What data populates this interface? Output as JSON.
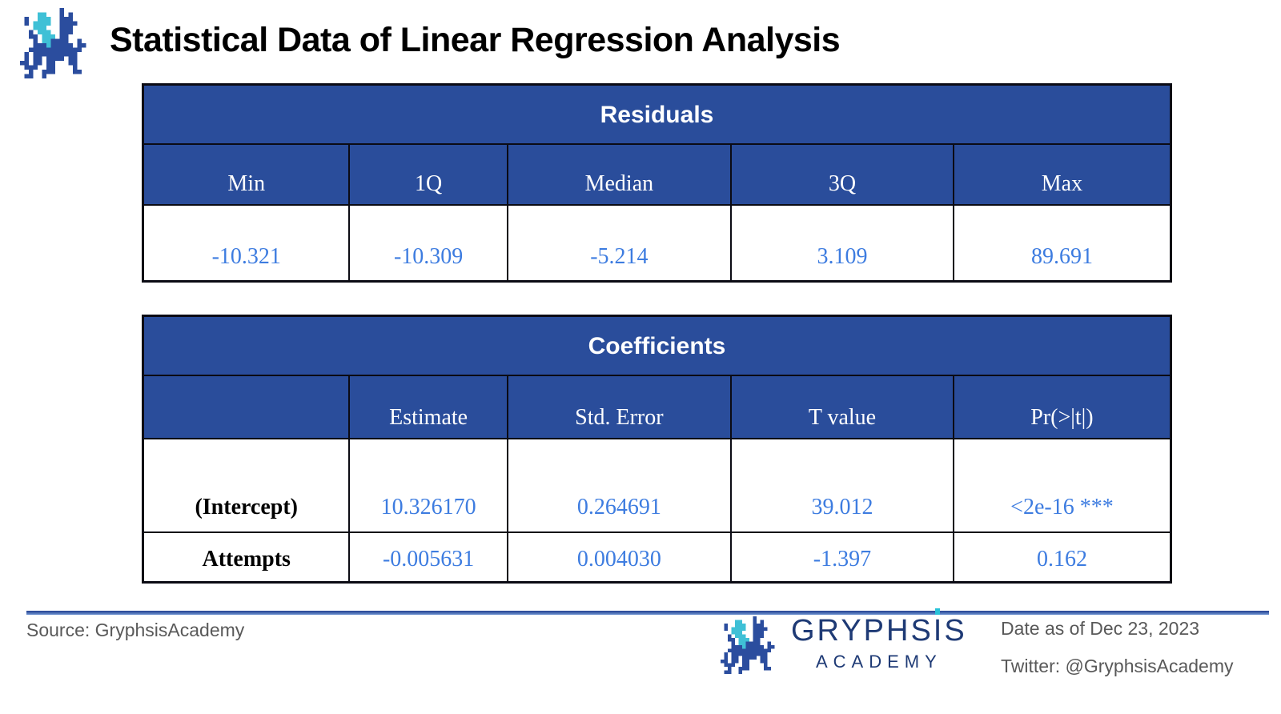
{
  "header": {
    "title": "Statistical Data of Linear Regression Analysis"
  },
  "residuals_table": {
    "caption": "Residuals",
    "columns": [
      "Min",
      "1Q",
      "Median",
      "3Q",
      "Max"
    ],
    "values": [
      "-10.321",
      "-10.309",
      "-5.214",
      "3.109",
      "89.691"
    ]
  },
  "coefficients_table": {
    "caption": "Coefficients",
    "columns": [
      "",
      "Estimate",
      "Std. Error",
      "T value",
      "Pr(>|t|)"
    ],
    "rows": [
      {
        "label": "(Intercept)",
        "values": [
          "10.326170",
          "0.264691",
          "39.012",
          "<2e-16 ***"
        ]
      },
      {
        "label": "Attempts",
        "values": [
          "-0.005631",
          "0.004030",
          "-1.397",
          "0.162"
        ]
      }
    ]
  },
  "footer": {
    "source": "Source: GryphsisAcademy",
    "brand": {
      "part1": "GRYPHS",
      "dotted_letter": "I",
      "part2": "S",
      "sub": "ACADEMY"
    },
    "date": "Date as of Dec 23, 2023",
    "twitter": "Twitter: @GryphsisAcademy"
  },
  "icons": {
    "logo": "gryphsis-pixel-dragon-logo"
  },
  "colors": {
    "table_header_blue": "#2a4d9b",
    "value_text_blue": "#3d7ce0",
    "brand_navy": "#1e3a75",
    "logo_blue": "#2b4d9e",
    "logo_cyan": "#3fc0d6",
    "footer_text_gray": "#595959",
    "border_black": "#0b0b14"
  }
}
